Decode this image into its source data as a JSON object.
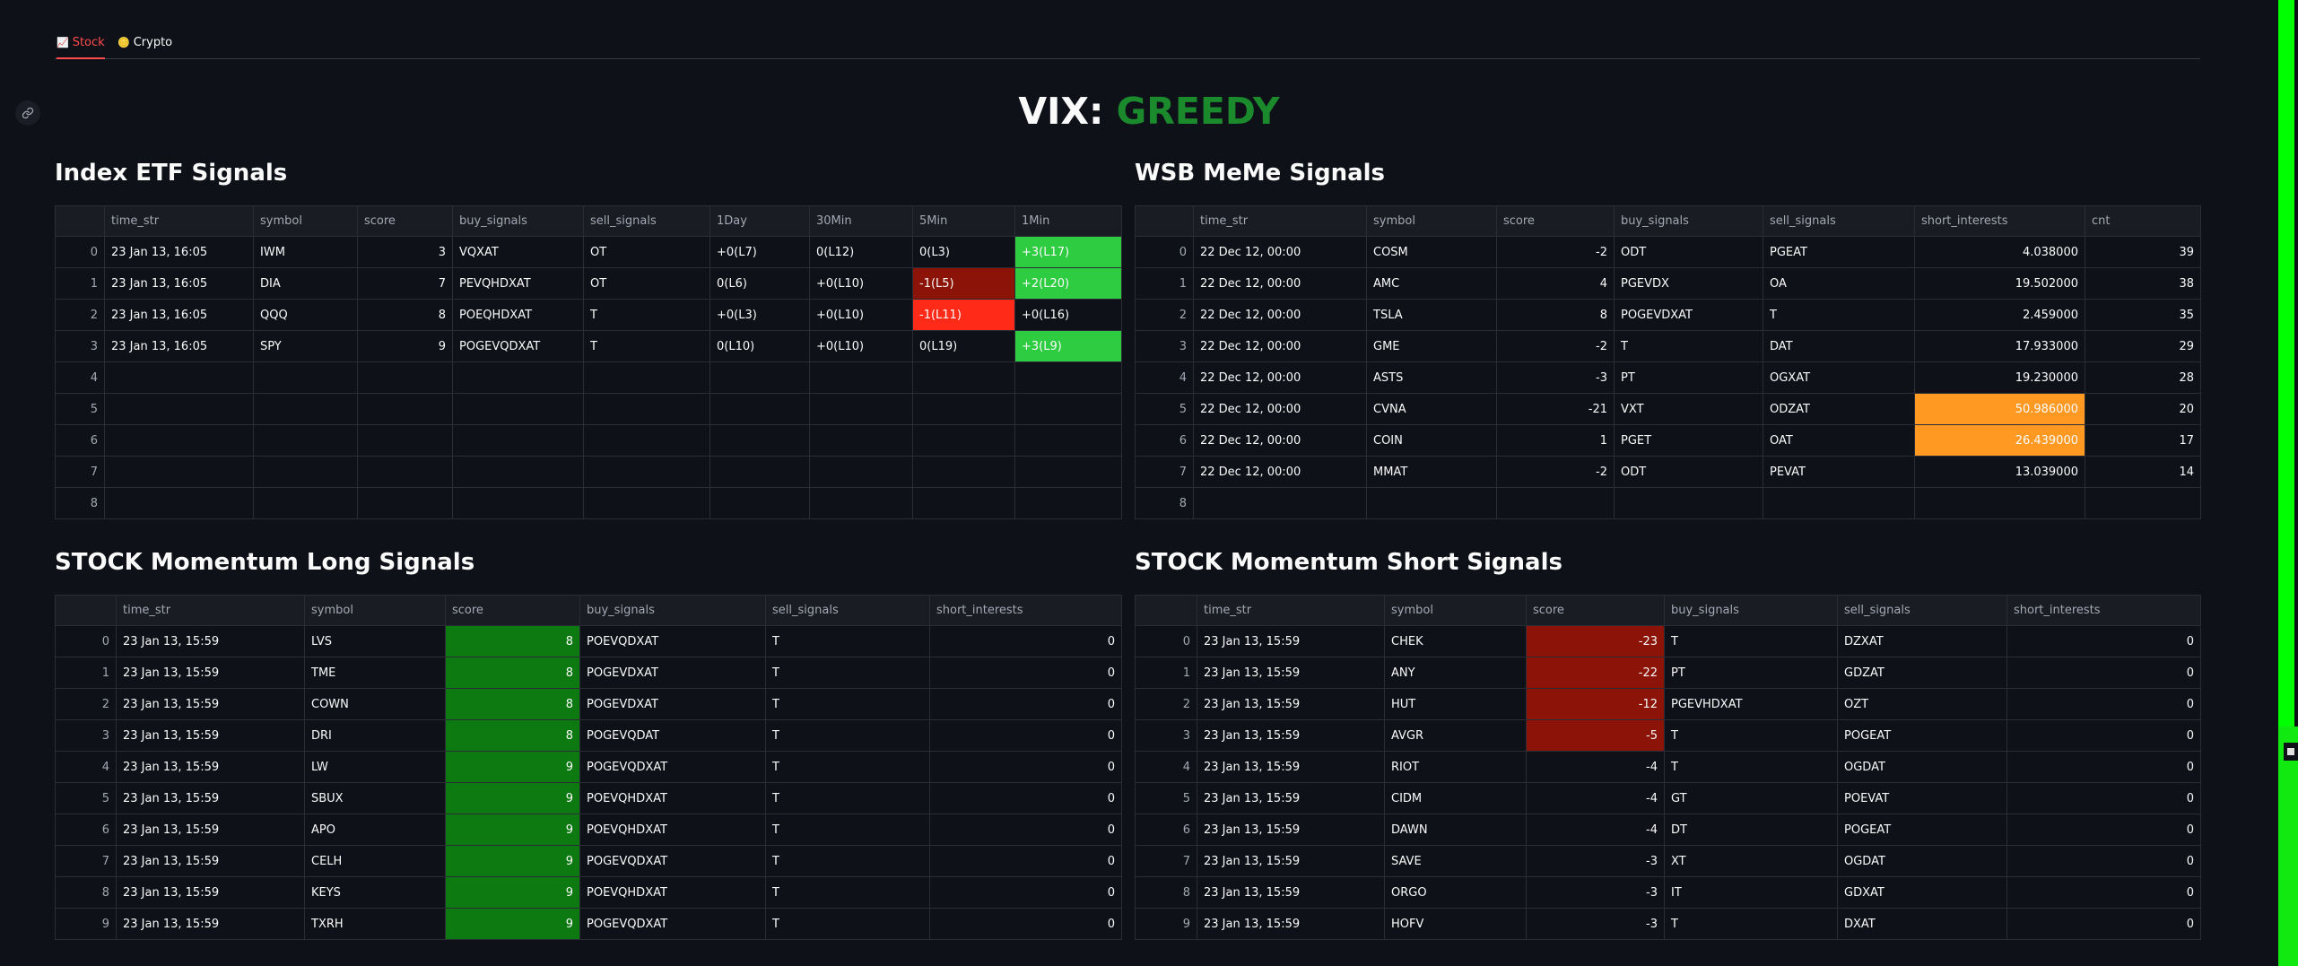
{
  "tabs": [
    {
      "label": "Stock",
      "icon": "chart-icon",
      "active": true
    },
    {
      "label": "Crypto",
      "icon": "coin-icon",
      "active": false
    }
  ],
  "vix": {
    "label": "VIX:",
    "state": "GREEDY",
    "state_color": "#1b8a2d"
  },
  "colors": {
    "background": "#0e1117",
    "accent": "#ff4b4b",
    "light_green": "#2ecc40",
    "dark_red": "#8b1308",
    "red": "#ff2b18",
    "orange": "#ff9922",
    "dark_green": "#0d7a11"
  },
  "index_etf": {
    "title": "Index ETF Signals",
    "columns": [
      "time_str",
      "symbol",
      "score",
      "buy_signals",
      "sell_signals",
      "1Day",
      "30Min",
      "5Min",
      "1Min"
    ],
    "rows": [
      {
        "idx": "0",
        "time_str": "23 Jan 13, 16:05",
        "symbol": "IWM",
        "score": "3",
        "buy_signals": "VQXAT",
        "sell_signals": "OT",
        "d1": "+0(L7)",
        "m30": "0(L12)",
        "m5": "0(L3)",
        "m1": "+3(L17)"
      },
      {
        "idx": "1",
        "time_str": "23 Jan 13, 16:05",
        "symbol": "DIA",
        "score": "7",
        "buy_signals": "PEVQHDXAT",
        "sell_signals": "OT",
        "d1": "0(L6)",
        "m30": "+0(L10)",
        "m5": "-1(L5)",
        "m1": "+2(L20)"
      },
      {
        "idx": "2",
        "time_str": "23 Jan 13, 16:05",
        "symbol": "QQQ",
        "score": "8",
        "buy_signals": "POEQHDXAT",
        "sell_signals": "T",
        "d1": "+0(L3)",
        "m30": "+0(L10)",
        "m5": "-1(L11)",
        "m1": "+0(L16)"
      },
      {
        "idx": "3",
        "time_str": "23 Jan 13, 16:05",
        "symbol": "SPY",
        "score": "9",
        "buy_signals": "POGEVQDXAT",
        "sell_signals": "T",
        "d1": "0(L10)",
        "m30": "+0(L10)",
        "m5": "0(L19)",
        "m1": "+3(L9)"
      },
      {
        "idx": "4",
        "time_str": "",
        "symbol": "",
        "score": "",
        "buy_signals": "",
        "sell_signals": "",
        "d1": "",
        "m30": "",
        "m5": "",
        "m1": ""
      },
      {
        "idx": "5",
        "time_str": "",
        "symbol": "",
        "score": "",
        "buy_signals": "",
        "sell_signals": "",
        "d1": "",
        "m30": "",
        "m5": "",
        "m1": ""
      },
      {
        "idx": "6",
        "time_str": "",
        "symbol": "",
        "score": "",
        "buy_signals": "",
        "sell_signals": "",
        "d1": "",
        "m30": "",
        "m5": "",
        "m1": ""
      },
      {
        "idx": "7",
        "time_str": "",
        "symbol": "",
        "score": "",
        "buy_signals": "",
        "sell_signals": "",
        "d1": "",
        "m30": "",
        "m5": "",
        "m1": ""
      },
      {
        "idx": "8",
        "time_str": "",
        "symbol": "",
        "score": "",
        "buy_signals": "",
        "sell_signals": "",
        "d1": "",
        "m30": "",
        "m5": "",
        "m1": ""
      }
    ]
  },
  "wsb": {
    "title": "WSB MeMe Signals",
    "columns": [
      "time_str",
      "symbol",
      "score",
      "buy_signals",
      "sell_signals",
      "short_interests",
      "cnt"
    ],
    "rows": [
      {
        "idx": "0",
        "time_str": "22 Dec 12, 00:00",
        "symbol": "COSM",
        "score": "-2",
        "buy_signals": "ODT",
        "sell_signals": "PGEAT",
        "short_interests": "4.038000",
        "cnt": "39"
      },
      {
        "idx": "1",
        "time_str": "22 Dec 12, 00:00",
        "symbol": "AMC",
        "score": "4",
        "buy_signals": "PGEVDX",
        "sell_signals": "OA",
        "short_interests": "19.502000",
        "cnt": "38"
      },
      {
        "idx": "2",
        "time_str": "22 Dec 12, 00:00",
        "symbol": "TSLA",
        "score": "8",
        "buy_signals": "POGEVDXAT",
        "sell_signals": "T",
        "short_interests": "2.459000",
        "cnt": "35"
      },
      {
        "idx": "3",
        "time_str": "22 Dec 12, 00:00",
        "symbol": "GME",
        "score": "-2",
        "buy_signals": "T",
        "sell_signals": "DAT",
        "short_interests": "17.933000",
        "cnt": "29"
      },
      {
        "idx": "4",
        "time_str": "22 Dec 12, 00:00",
        "symbol": "ASTS",
        "score": "-3",
        "buy_signals": "PT",
        "sell_signals": "OGXAT",
        "short_interests": "19.230000",
        "cnt": "28"
      },
      {
        "idx": "5",
        "time_str": "22 Dec 12, 00:00",
        "symbol": "CVNA",
        "score": "-21",
        "buy_signals": "VXT",
        "sell_signals": "ODZAT",
        "short_interests": "50.986000",
        "cnt": "20"
      },
      {
        "idx": "6",
        "time_str": "22 Dec 12, 00:00",
        "symbol": "COIN",
        "score": "1",
        "buy_signals": "PGET",
        "sell_signals": "OAT",
        "short_interests": "26.439000",
        "cnt": "17"
      },
      {
        "idx": "7",
        "time_str": "22 Dec 12, 00:00",
        "symbol": "MMAT",
        "score": "-2",
        "buy_signals": "ODT",
        "sell_signals": "PEVAT",
        "short_interests": "13.039000",
        "cnt": "14"
      },
      {
        "idx": "8",
        "time_str": "",
        "symbol": "",
        "score": "",
        "buy_signals": "",
        "sell_signals": "",
        "short_interests": "",
        "cnt": ""
      }
    ]
  },
  "mom_long": {
    "title": "STOCK Momentum Long Signals",
    "columns": [
      "time_str",
      "symbol",
      "score",
      "buy_signals",
      "sell_signals",
      "short_interests"
    ],
    "rows": [
      {
        "idx": "0",
        "time_str": "23 Jan 13, 15:59",
        "symbol": "LVS",
        "score": "8",
        "buy_signals": "POEVQDXAT",
        "sell_signals": "T",
        "short_interests": "0"
      },
      {
        "idx": "1",
        "time_str": "23 Jan 13, 15:59",
        "symbol": "TME",
        "score": "8",
        "buy_signals": "POGEVDXAT",
        "sell_signals": "T",
        "short_interests": "0"
      },
      {
        "idx": "2",
        "time_str": "23 Jan 13, 15:59",
        "symbol": "COWN",
        "score": "8",
        "buy_signals": "POGEVDXAT",
        "sell_signals": "T",
        "short_interests": "0"
      },
      {
        "idx": "3",
        "time_str": "23 Jan 13, 15:59",
        "symbol": "DRI",
        "score": "8",
        "buy_signals": "POGEVQDAT",
        "sell_signals": "T",
        "short_interests": "0"
      },
      {
        "idx": "4",
        "time_str": "23 Jan 13, 15:59",
        "symbol": "LW",
        "score": "9",
        "buy_signals": "POGEVQDXAT",
        "sell_signals": "T",
        "short_interests": "0"
      },
      {
        "idx": "5",
        "time_str": "23 Jan 13, 15:59",
        "symbol": "SBUX",
        "score": "9",
        "buy_signals": "POEVQHDXAT",
        "sell_signals": "T",
        "short_interests": "0"
      },
      {
        "idx": "6",
        "time_str": "23 Jan 13, 15:59",
        "symbol": "APO",
        "score": "9",
        "buy_signals": "POEVQHDXAT",
        "sell_signals": "T",
        "short_interests": "0"
      },
      {
        "idx": "7",
        "time_str": "23 Jan 13, 15:59",
        "symbol": "CELH",
        "score": "9",
        "buy_signals": "POGEVQDXAT",
        "sell_signals": "T",
        "short_interests": "0"
      },
      {
        "idx": "8",
        "time_str": "23 Jan 13, 15:59",
        "symbol": "KEYS",
        "score": "9",
        "buy_signals": "POEVQHDXAT",
        "sell_signals": "T",
        "short_interests": "0"
      },
      {
        "idx": "9",
        "time_str": "23 Jan 13, 15:59",
        "symbol": "TXRH",
        "score": "9",
        "buy_signals": "POGEVQDXAT",
        "sell_signals": "T",
        "short_interests": "0"
      }
    ]
  },
  "mom_short": {
    "title": "STOCK Momentum Short Signals",
    "columns": [
      "time_str",
      "symbol",
      "score",
      "buy_signals",
      "sell_signals",
      "short_interests"
    ],
    "rows": [
      {
        "idx": "0",
        "time_str": "23 Jan 13, 15:59",
        "symbol": "CHEK",
        "score": "-23",
        "buy_signals": "T",
        "sell_signals": "DZXAT",
        "short_interests": "0"
      },
      {
        "idx": "1",
        "time_str": "23 Jan 13, 15:59",
        "symbol": "ANY",
        "score": "-22",
        "buy_signals": "PT",
        "sell_signals": "GDZAT",
        "short_interests": "0"
      },
      {
        "idx": "2",
        "time_str": "23 Jan 13, 15:59",
        "symbol": "HUT",
        "score": "-12",
        "buy_signals": "PGEVHDXAT",
        "sell_signals": "OZT",
        "short_interests": "0"
      },
      {
        "idx": "3",
        "time_str": "23 Jan 13, 15:59",
        "symbol": "AVGR",
        "score": "-5",
        "buy_signals": "T",
        "sell_signals": "POGEAT",
        "short_interests": "0"
      },
      {
        "idx": "4",
        "time_str": "23 Jan 13, 15:59",
        "symbol": "RIOT",
        "score": "-4",
        "buy_signals": "T",
        "sell_signals": "OGDAT",
        "short_interests": "0"
      },
      {
        "idx": "5",
        "time_str": "23 Jan 13, 15:59",
        "symbol": "CIDM",
        "score": "-4",
        "buy_signals": "GT",
        "sell_signals": "POEVAT",
        "short_interests": "0"
      },
      {
        "idx": "6",
        "time_str": "23 Jan 13, 15:59",
        "symbol": "DAWN",
        "score": "-4",
        "buy_signals": "DT",
        "sell_signals": "POGEAT",
        "short_interests": "0"
      },
      {
        "idx": "7",
        "time_str": "23 Jan 13, 15:59",
        "symbol": "SAVE",
        "score": "-3",
        "buy_signals": "XT",
        "sell_signals": "OGDAT",
        "short_interests": "0"
      },
      {
        "idx": "8",
        "time_str": "23 Jan 13, 15:59",
        "symbol": "ORGO",
        "score": "-3",
        "buy_signals": "IT",
        "sell_signals": "GDXAT",
        "short_interests": "0"
      },
      {
        "idx": "9",
        "time_str": "23 Jan 13, 15:59",
        "symbol": "HOFV",
        "score": "-3",
        "buy_signals": "T",
        "sell_signals": "DXAT",
        "short_interests": "0"
      }
    ]
  }
}
